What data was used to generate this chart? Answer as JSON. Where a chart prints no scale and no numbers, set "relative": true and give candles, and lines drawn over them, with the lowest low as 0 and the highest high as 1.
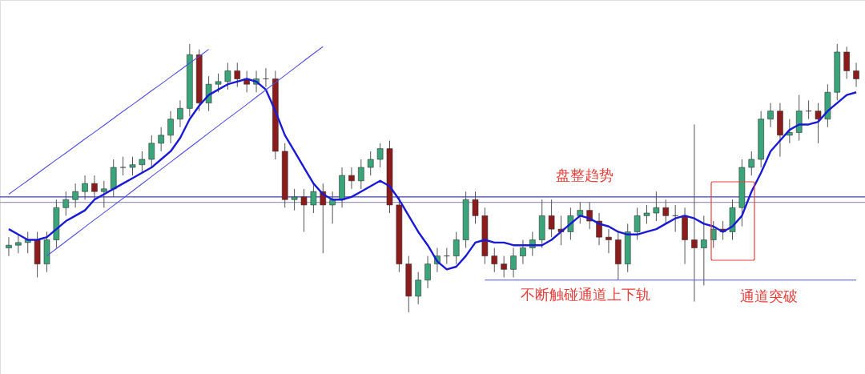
{
  "chart_data": {
    "type": "candlestick",
    "relative": true,
    "categories": [
      null,
      null,
      null,
      null,
      null,
      null,
      null,
      null,
      null,
      null,
      null,
      null,
      null,
      null,
      null,
      null,
      null,
      null,
      null,
      null,
      null,
      null,
      null,
      null,
      null,
      null,
      null,
      null,
      null,
      null,
      null,
      null,
      null,
      null,
      null,
      null,
      null,
      null,
      null,
      null,
      null,
      null,
      null,
      null,
      null,
      null,
      null,
      null,
      null,
      null,
      null,
      null,
      null,
      null,
      null,
      null,
      null,
      null,
      null,
      null,
      null,
      null,
      null,
      null,
      null,
      null,
      null,
      null,
      null,
      null,
      null,
      null,
      null,
      null,
      null,
      null,
      null,
      null,
      null,
      null,
      null,
      null,
      null,
      null,
      null,
      null,
      null,
      null,
      null,
      null
    ],
    "ohlc": [
      [
        0.24,
        0.28,
        0.21,
        0.25
      ],
      [
        0.25,
        0.29,
        0.22,
        0.26
      ],
      [
        0.26,
        0.3,
        0.22,
        0.27
      ],
      [
        0.27,
        0.3,
        0.13,
        0.18
      ],
      [
        0.18,
        0.3,
        0.15,
        0.27
      ],
      [
        0.27,
        0.42,
        0.24,
        0.39
      ],
      [
        0.39,
        0.45,
        0.36,
        0.42
      ],
      [
        0.42,
        0.48,
        0.39,
        0.45
      ],
      [
        0.45,
        0.51,
        0.42,
        0.48
      ],
      [
        0.48,
        0.51,
        0.42,
        0.45
      ],
      [
        0.45,
        0.49,
        0.39,
        0.46
      ],
      [
        0.46,
        0.57,
        0.43,
        0.54
      ],
      [
        0.54,
        0.58,
        0.51,
        0.54
      ],
      [
        0.54,
        0.58,
        0.51,
        0.55
      ],
      [
        0.55,
        0.6,
        0.52,
        0.57
      ],
      [
        0.57,
        0.66,
        0.54,
        0.63
      ],
      [
        0.63,
        0.69,
        0.6,
        0.66
      ],
      [
        0.66,
        0.75,
        0.63,
        0.72
      ],
      [
        0.72,
        0.79,
        0.69,
        0.76
      ],
      [
        0.76,
        1.0,
        0.73,
        0.96
      ],
      [
        0.96,
        0.98,
        0.75,
        0.78
      ],
      [
        0.78,
        0.88,
        0.75,
        0.85
      ],
      [
        0.85,
        0.89,
        0.82,
        0.86
      ],
      [
        0.86,
        0.93,
        0.83,
        0.9
      ],
      [
        0.9,
        0.93,
        0.84,
        0.87
      ],
      [
        0.87,
        0.9,
        0.82,
        0.85
      ],
      [
        0.85,
        0.9,
        0.82,
        0.87
      ],
      [
        0.87,
        0.91,
        0.84,
        0.87
      ],
      [
        0.87,
        0.9,
        0.57,
        0.6
      ],
      [
        0.6,
        0.63,
        0.39,
        0.42
      ],
      [
        0.42,
        0.46,
        0.38,
        0.43
      ],
      [
        0.43,
        0.46,
        0.3,
        0.4
      ],
      [
        0.4,
        0.48,
        0.37,
        0.45
      ],
      [
        0.45,
        0.48,
        0.22,
        0.4
      ],
      [
        0.4,
        0.45,
        0.33,
        0.42
      ],
      [
        0.42,
        0.54,
        0.39,
        0.51
      ],
      [
        0.51,
        0.54,
        0.46,
        0.49
      ],
      [
        0.49,
        0.57,
        0.46,
        0.54
      ],
      [
        0.54,
        0.6,
        0.51,
        0.57
      ],
      [
        0.57,
        0.63,
        0.54,
        0.61
      ],
      [
        0.61,
        0.64,
        0.37,
        0.4
      ],
      [
        0.4,
        0.43,
        0.15,
        0.18
      ],
      [
        0.18,
        0.21,
        0.0,
        0.06
      ],
      [
        0.06,
        0.15,
        0.03,
        0.12
      ],
      [
        0.12,
        0.21,
        0.09,
        0.18
      ],
      [
        0.18,
        0.24,
        0.15,
        0.21
      ],
      [
        0.21,
        0.24,
        0.18,
        0.21
      ],
      [
        0.21,
        0.3,
        0.18,
        0.27
      ],
      [
        0.27,
        0.45,
        0.24,
        0.42
      ],
      [
        0.42,
        0.45,
        0.33,
        0.36
      ],
      [
        0.36,
        0.39,
        0.18,
        0.21
      ],
      [
        0.21,
        0.24,
        0.15,
        0.18
      ],
      [
        0.18,
        0.21,
        0.13,
        0.16
      ],
      [
        0.16,
        0.24,
        0.13,
        0.21
      ],
      [
        0.21,
        0.27,
        0.18,
        0.24
      ],
      [
        0.24,
        0.3,
        0.21,
        0.27
      ],
      [
        0.27,
        0.42,
        0.24,
        0.36
      ],
      [
        0.36,
        0.42,
        0.28,
        0.31
      ],
      [
        0.31,
        0.36,
        0.25,
        0.3
      ],
      [
        0.3,
        0.39,
        0.27,
        0.36
      ],
      [
        0.36,
        0.41,
        0.33,
        0.38
      ],
      [
        0.38,
        0.41,
        0.31,
        0.34
      ],
      [
        0.34,
        0.37,
        0.25,
        0.28
      ],
      [
        0.28,
        0.31,
        0.22,
        0.27
      ],
      [
        0.27,
        0.3,
        0.12,
        0.18
      ],
      [
        0.18,
        0.33,
        0.15,
        0.3
      ],
      [
        0.3,
        0.39,
        0.27,
        0.36
      ],
      [
        0.36,
        0.4,
        0.33,
        0.37
      ],
      [
        0.37,
        0.45,
        0.34,
        0.39
      ],
      [
        0.39,
        0.42,
        0.33,
        0.36
      ],
      [
        0.36,
        0.4,
        0.3,
        0.36
      ],
      [
        0.36,
        0.39,
        0.18,
        0.27
      ],
      [
        0.27,
        0.7,
        0.04,
        0.24
      ],
      [
        0.24,
        0.36,
        0.1,
        0.27
      ],
      [
        0.27,
        0.34,
        0.24,
        0.31
      ],
      [
        0.31,
        0.34,
        0.27,
        0.3
      ],
      [
        0.3,
        0.42,
        0.27,
        0.39
      ],
      [
        0.39,
        0.57,
        0.32,
        0.54
      ],
      [
        0.54,
        0.6,
        0.51,
        0.57
      ],
      [
        0.57,
        0.75,
        0.54,
        0.72
      ],
      [
        0.72,
        0.78,
        0.69,
        0.75
      ],
      [
        0.75,
        0.78,
        0.58,
        0.66
      ],
      [
        0.66,
        0.72,
        0.63,
        0.67
      ],
      [
        0.67,
        0.81,
        0.64,
        0.75
      ],
      [
        0.75,
        0.79,
        0.72,
        0.75
      ],
      [
        0.75,
        0.78,
        0.63,
        0.72
      ],
      [
        0.72,
        0.85,
        0.69,
        0.82
      ],
      [
        0.82,
        1.0,
        0.79,
        0.97
      ],
      [
        0.97,
        0.99,
        0.87,
        0.9
      ],
      [
        0.9,
        0.93,
        0.84,
        0.87
      ]
    ],
    "series": [
      {
        "type": "line",
        "color": "#1a1ad6",
        "values": [
          0.31,
          0.29,
          0.27,
          0.27,
          0.28,
          0.31,
          0.34,
          0.36,
          0.38,
          0.42,
          0.44,
          0.46,
          0.48,
          0.5,
          0.52,
          0.54,
          0.57,
          0.6,
          0.65,
          0.72,
          0.77,
          0.81,
          0.83,
          0.85,
          0.86,
          0.87,
          0.86,
          0.83,
          0.75,
          0.66,
          0.6,
          0.54,
          0.48,
          0.44,
          0.42,
          0.42,
          0.43,
          0.45,
          0.47,
          0.49,
          0.47,
          0.42,
          0.36,
          0.3,
          0.25,
          0.19,
          0.16,
          0.17,
          0.21,
          0.26,
          0.27,
          0.26,
          0.26,
          0.25,
          0.25,
          0.25,
          0.25,
          0.27,
          0.3,
          0.33,
          0.36,
          0.35,
          0.33,
          0.32,
          0.3,
          0.29,
          0.29,
          0.3,
          0.31,
          0.33,
          0.35,
          0.36,
          0.35,
          0.33,
          0.32,
          0.3,
          0.32,
          0.36,
          0.45,
          0.52,
          0.6,
          0.64,
          0.68,
          0.7,
          0.7,
          0.71,
          0.75,
          0.78,
          0.81,
          0.82
        ]
      },
      {
        "type": "line",
        "color": "#5050e0",
        "values": [
          0.44,
          0.466,
          0.491,
          0.517,
          0.543,
          0.569,
          0.594,
          0.62,
          0.646,
          0.671,
          0.697,
          0.723,
          0.749,
          0.774,
          0.8,
          0.826,
          0.851,
          0.877,
          0.903,
          0.929,
          0.954,
          0.98,
          null,
          null,
          null,
          null,
          null,
          null,
          null,
          null,
          null,
          null,
          null,
          null,
          null,
          null,
          null,
          null,
          null,
          null,
          null,
          null,
          null,
          null,
          null,
          null,
          null,
          null,
          null,
          null,
          null,
          null,
          null,
          null,
          null,
          null,
          null,
          null,
          null,
          null,
          null,
          null,
          null,
          null,
          null,
          null,
          null,
          null,
          null,
          null,
          null,
          null,
          null,
          null,
          null,
          null,
          null,
          null,
          null,
          null,
          null,
          null,
          null,
          null,
          null,
          null,
          null,
          null,
          null,
          null
        ]
      },
      {
        "type": "line",
        "color": "#5050e0",
        "values": [
          null,
          null,
          null,
          null,
          0.21,
          0.237,
          0.264,
          0.291,
          0.318,
          0.345,
          0.371,
          0.398,
          0.425,
          0.452,
          0.479,
          0.506,
          0.533,
          0.56,
          0.587,
          0.614,
          0.641,
          0.668,
          0.695,
          0.722,
          0.748,
          0.775,
          0.802,
          0.829,
          0.856,
          0.883,
          0.91,
          0.937,
          0.964,
          0.99,
          null,
          null,
          null,
          null,
          null,
          null,
          null,
          null,
          null,
          null,
          null,
          null,
          null,
          null,
          null,
          null,
          null,
          null,
          null,
          null,
          null,
          null,
          null,
          null,
          null,
          null,
          null,
          null,
          null,
          null,
          null,
          null,
          null,
          null,
          null,
          null,
          null,
          null,
          null,
          null,
          null,
          null,
          null,
          null,
          null,
          null,
          null,
          null,
          null,
          null,
          null,
          null,
          null,
          null,
          null,
          null
        ]
      },
      {
        "type": "line",
        "color": "#5050e0",
        "values": [
          null,
          null,
          null,
          null,
          null,
          null,
          null,
          null,
          null,
          null,
          null,
          null,
          null,
          null,
          null,
          null,
          null,
          null,
          null,
          null,
          null,
          null,
          null,
          null,
          null,
          null,
          null,
          null,
          null,
          null,
          null,
          null,
          null,
          null,
          null,
          null,
          null,
          null,
          null,
          null,
          null,
          null,
          null,
          null,
          null,
          null,
          null,
          null,
          null,
          null,
          0.12,
          0.12,
          0.12,
          0.12,
          0.12,
          0.12,
          0.12,
          0.12,
          0.12,
          0.12,
          0.12,
          0.12,
          0.12,
          0.12,
          0.12,
          0.12,
          0.12,
          0.12,
          0.12,
          0.12,
          0.12,
          0.12,
          0.12,
          0.12,
          0.12,
          0.12,
          0.12,
          0.12,
          0.12,
          0.12,
          0.12,
          0.12,
          0.12,
          0.12,
          0.12,
          0.12,
          0.12,
          0.12,
          0.12,
          0.12
        ]
      }
    ],
    "ref_lines": [
      {
        "axis": "y",
        "value": 0.43,
        "color": "#3d3dd6"
      },
      {
        "axis": "y",
        "value": 0.41,
        "color": "#9a9ab8"
      }
    ],
    "annotations": [
      "盘整趋势",
      "不断触碰通道上下轨",
      "通道突破"
    ]
  }
}
